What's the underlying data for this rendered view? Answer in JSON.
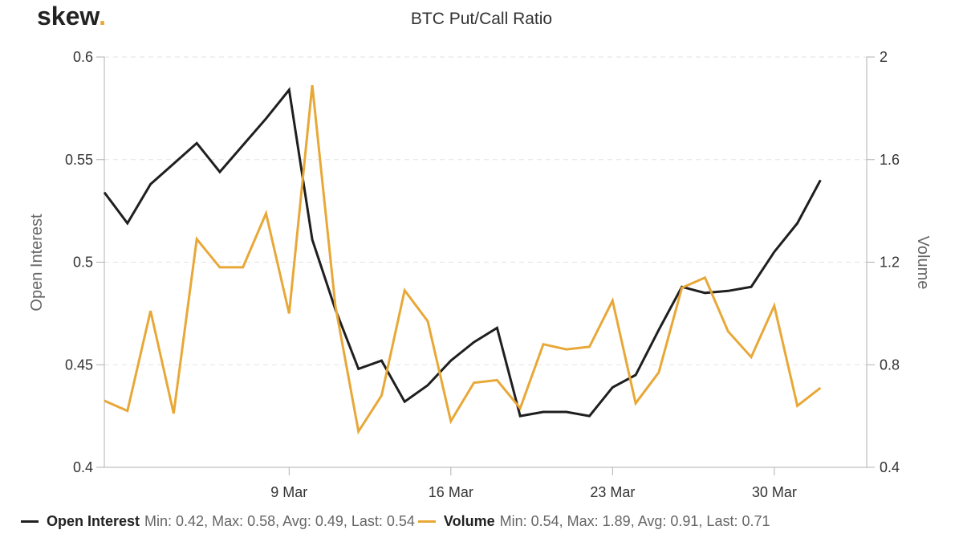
{
  "logo": {
    "text": "skew",
    "dot": "."
  },
  "chart_data": {
    "type": "line",
    "title": "BTC Put/Call Ratio",
    "x_start": "2020-03-01",
    "x_end": "2020-04-03",
    "x_ticks": [
      {
        "label": "9 Mar",
        "date": "2020-03-09"
      },
      {
        "label": "16 Mar",
        "date": "2020-03-16"
      },
      {
        "label": "23 Mar",
        "date": "2020-03-23"
      },
      {
        "label": "30 Mar",
        "date": "2020-03-30"
      }
    ],
    "y_left": {
      "label": "Open Interest",
      "range": [
        0.4,
        0.6
      ],
      "ticks": [
        "0.4",
        "0.45",
        "0.5",
        "0.55",
        "0.6"
      ]
    },
    "y_right": {
      "label": "Volume",
      "range": [
        0.4,
        2.0
      ],
      "ticks": [
        "0.4",
        "0.8",
        "1.2",
        "1.6",
        "2"
      ]
    },
    "grid": "horizontal dashed",
    "legend_position": "bottom",
    "series": [
      {
        "name": "Open Interest",
        "axis": "left",
        "color": "#1f1f1f",
        "stats": "Min: 0.42, Max: 0.58, Avg: 0.49, Last: 0.54",
        "points": [
          [
            "2020-03-01",
            0.534
          ],
          [
            "2020-03-02",
            0.519
          ],
          [
            "2020-03-03",
            0.538
          ],
          [
            "2020-03-04",
            0.548
          ],
          [
            "2020-03-05",
            0.558
          ],
          [
            "2020-03-06",
            0.544
          ],
          [
            "2020-03-07",
            0.557
          ],
          [
            "2020-03-08",
            0.57
          ],
          [
            "2020-03-09",
            0.584
          ],
          [
            "2020-03-10",
            0.511
          ],
          [
            "2020-03-11",
            0.477
          ],
          [
            "2020-03-12",
            0.448
          ],
          [
            "2020-03-13",
            0.452
          ],
          [
            "2020-03-14",
            0.432
          ],
          [
            "2020-03-15",
            0.44
          ],
          [
            "2020-03-16",
            0.452
          ],
          [
            "2020-03-17",
            0.461
          ],
          [
            "2020-03-18",
            0.468
          ],
          [
            "2020-03-19",
            0.425
          ],
          [
            "2020-03-20",
            0.427
          ],
          [
            "2020-03-21",
            0.427
          ],
          [
            "2020-03-22",
            0.425
          ],
          [
            "2020-03-23",
            0.439
          ],
          [
            "2020-03-24",
            0.445
          ],
          [
            "2020-03-25",
            0.467
          ],
          [
            "2020-03-26",
            0.488
          ],
          [
            "2020-03-27",
            0.485
          ],
          [
            "2020-03-28",
            0.486
          ],
          [
            "2020-03-29",
            0.488
          ],
          [
            "2020-03-30",
            0.505
          ],
          [
            "2020-03-31",
            0.519
          ],
          [
            "2020-04-01",
            0.54
          ]
        ]
      },
      {
        "name": "Volume",
        "axis": "right",
        "color": "#e8a838",
        "stats": "Min: 0.54, Max: 1.89, Avg: 0.91, Last: 0.71",
        "points": [
          [
            "2020-03-01",
            0.66
          ],
          [
            "2020-03-02",
            0.62
          ],
          [
            "2020-03-03",
            1.01
          ],
          [
            "2020-03-04",
            0.61
          ],
          [
            "2020-03-05",
            1.29
          ],
          [
            "2020-03-06",
            1.18
          ],
          [
            "2020-03-07",
            1.18
          ],
          [
            "2020-03-08",
            1.39
          ],
          [
            "2020-03-09",
            1.0
          ],
          [
            "2020-03-10",
            1.89
          ],
          [
            "2020-03-11",
            1.03
          ],
          [
            "2020-03-12",
            0.54
          ],
          [
            "2020-03-13",
            0.68
          ],
          [
            "2020-03-14",
            1.09
          ],
          [
            "2020-03-15",
            0.97
          ],
          [
            "2020-03-16",
            0.58
          ],
          [
            "2020-03-17",
            0.73
          ],
          [
            "2020-03-18",
            0.74
          ],
          [
            "2020-03-19",
            0.63
          ],
          [
            "2020-03-20",
            0.88
          ],
          [
            "2020-03-21",
            0.86
          ],
          [
            "2020-03-22",
            0.87
          ],
          [
            "2020-03-23",
            1.05
          ],
          [
            "2020-03-24",
            0.65
          ],
          [
            "2020-03-25",
            0.77
          ],
          [
            "2020-03-26",
            1.1
          ],
          [
            "2020-03-27",
            1.14
          ],
          [
            "2020-03-28",
            0.93
          ],
          [
            "2020-03-29",
            0.83
          ],
          [
            "2020-03-30",
            1.03
          ],
          [
            "2020-03-31",
            0.64
          ],
          [
            "2020-04-01",
            0.71
          ]
        ]
      }
    ]
  }
}
